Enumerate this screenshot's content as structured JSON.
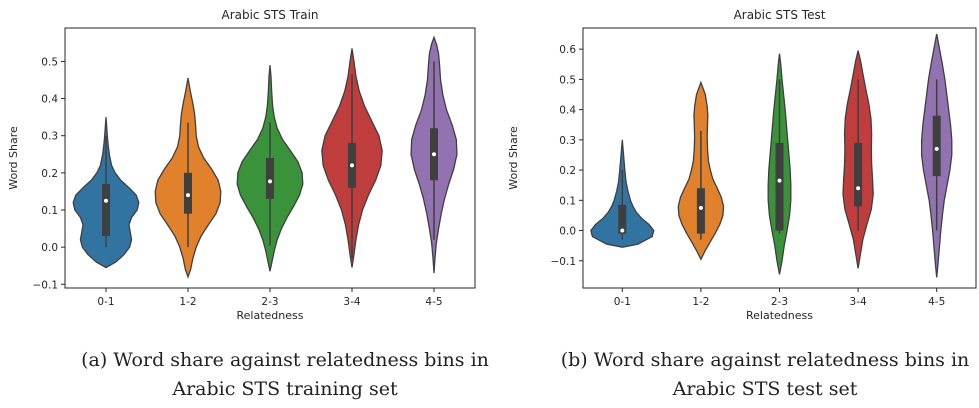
{
  "chart_data": [
    {
      "type": "violin",
      "title": "Arabic STS Train",
      "xlabel": "Relatedness",
      "ylabel": "Word Share",
      "categories": [
        "0-1",
        "1-2",
        "2-3",
        "3-4",
        "4-5"
      ],
      "ylim": [
        -0.11,
        0.59
      ],
      "yticks": [
        -0.1,
        0.0,
        0.1,
        0.2,
        0.3,
        0.4,
        0.5
      ],
      "ytick_labels": [
        "−0.1",
        "0.0",
        "0.1",
        "0.2",
        "0.3",
        "0.4",
        "0.5"
      ],
      "colors": [
        "#3274a1",
        "#e1812c",
        "#3a923a",
        "#c03d3e",
        "#9372b2"
      ],
      "grid": false,
      "violins": [
        {
          "category": "0-1",
          "median": 0.125,
          "q1": 0.03,
          "q3": 0.17,
          "whisker_low": 0.0,
          "whisker_high": 0.3,
          "profile": [
            [
              -0.055,
              0.0
            ],
            [
              -0.04,
              0.3
            ],
            [
              -0.02,
              0.55
            ],
            [
              0.0,
              0.72
            ],
            [
              0.02,
              0.78
            ],
            [
              0.04,
              0.74
            ],
            [
              0.06,
              0.7
            ],
            [
              0.08,
              0.78
            ],
            [
              0.1,
              0.95
            ],
            [
              0.12,
              1.0
            ],
            [
              0.14,
              0.92
            ],
            [
              0.16,
              0.7
            ],
            [
              0.18,
              0.45
            ],
            [
              0.2,
              0.28
            ],
            [
              0.22,
              0.17
            ],
            [
              0.25,
              0.1
            ],
            [
              0.28,
              0.06
            ],
            [
              0.3,
              0.04
            ],
            [
              0.35,
              0.0
            ]
          ]
        },
        {
          "category": "1-2",
          "median": 0.14,
          "q1": 0.09,
          "q3": 0.2,
          "whisker_low": 0.0,
          "whisker_high": 0.335,
          "profile": [
            [
              -0.08,
              0.0
            ],
            [
              -0.06,
              0.08
            ],
            [
              -0.03,
              0.15
            ],
            [
              0.0,
              0.25
            ],
            [
              0.03,
              0.4
            ],
            [
              0.06,
              0.62
            ],
            [
              0.09,
              0.85
            ],
            [
              0.12,
              0.98
            ],
            [
              0.15,
              1.0
            ],
            [
              0.18,
              0.92
            ],
            [
              0.21,
              0.72
            ],
            [
              0.24,
              0.48
            ],
            [
              0.27,
              0.32
            ],
            [
              0.3,
              0.25
            ],
            [
              0.33,
              0.23
            ],
            [
              0.36,
              0.2
            ],
            [
              0.39,
              0.14
            ],
            [
              0.42,
              0.07
            ],
            [
              0.455,
              0.0
            ]
          ]
        },
        {
          "category": "2-3",
          "median": 0.177,
          "q1": 0.13,
          "q3": 0.24,
          "whisker_low": 0.005,
          "whisker_high": 0.335,
          "profile": [
            [
              -0.065,
              0.0
            ],
            [
              -0.04,
              0.06
            ],
            [
              -0.01,
              0.13
            ],
            [
              0.02,
              0.22
            ],
            [
              0.05,
              0.35
            ],
            [
              0.08,
              0.52
            ],
            [
              0.11,
              0.72
            ],
            [
              0.14,
              0.9
            ],
            [
              0.17,
              1.0
            ],
            [
              0.2,
              0.98
            ],
            [
              0.23,
              0.85
            ],
            [
              0.26,
              0.62
            ],
            [
              0.29,
              0.38
            ],
            [
              0.32,
              0.22
            ],
            [
              0.35,
              0.13
            ],
            [
              0.38,
              0.08
            ],
            [
              0.42,
              0.05
            ],
            [
              0.46,
              0.03
            ],
            [
              0.49,
              0.0
            ]
          ]
        },
        {
          "category": "3-4",
          "median": 0.22,
          "q1": 0.16,
          "q3": 0.28,
          "whisker_low": -0.03,
          "whisker_high": 0.465,
          "profile": [
            [
              -0.055,
              0.0
            ],
            [
              -0.02,
              0.06
            ],
            [
              0.02,
              0.12
            ],
            [
              0.06,
              0.2
            ],
            [
              0.1,
              0.32
            ],
            [
              0.14,
              0.5
            ],
            [
              0.18,
              0.72
            ],
            [
              0.22,
              0.88
            ],
            [
              0.26,
              0.92
            ],
            [
              0.3,
              0.82
            ],
            [
              0.34,
              0.6
            ],
            [
              0.38,
              0.38
            ],
            [
              0.42,
              0.22
            ],
            [
              0.46,
              0.12
            ],
            [
              0.5,
              0.06
            ],
            [
              0.535,
              0.0
            ]
          ]
        },
        {
          "category": "4-5",
          "median": 0.25,
          "q1": 0.18,
          "q3": 0.32,
          "whisker_low": 0.02,
          "whisker_high": 0.5,
          "profile": [
            [
              -0.07,
              0.0
            ],
            [
              -0.03,
              0.03
            ],
            [
              0.01,
              0.07
            ],
            [
              0.05,
              0.14
            ],
            [
              0.09,
              0.22
            ],
            [
              0.13,
              0.32
            ],
            [
              0.17,
              0.45
            ],
            [
              0.21,
              0.6
            ],
            [
              0.25,
              0.7
            ],
            [
              0.29,
              0.68
            ],
            [
              0.33,
              0.55
            ],
            [
              0.37,
              0.38
            ],
            [
              0.41,
              0.27
            ],
            [
              0.45,
              0.2
            ],
            [
              0.49,
              0.17
            ],
            [
              0.52,
              0.14
            ],
            [
              0.545,
              0.08
            ],
            [
              0.565,
              0.0
            ]
          ]
        }
      ]
    },
    {
      "type": "violin",
      "title": "Arabic STS Test",
      "xlabel": "Relatedness",
      "ylabel": "Word Share",
      "categories": [
        "0-1",
        "1-2",
        "2-3",
        "3-4",
        "4-5"
      ],
      "ylim": [
        -0.19,
        0.67
      ],
      "yticks": [
        -0.1,
        0.0,
        0.1,
        0.2,
        0.3,
        0.4,
        0.5,
        0.6
      ],
      "ytick_labels": [
        "−0.1",
        "0.0",
        "0.1",
        "0.2",
        "0.3",
        "0.4",
        "0.5",
        "0.6"
      ],
      "colors": [
        "#3274a1",
        "#e1812c",
        "#3a923a",
        "#c03d3e",
        "#9372b2"
      ],
      "grid": false,
      "violins": [
        {
          "category": "0-1",
          "median": 0.0,
          "q1": -0.01,
          "q3": 0.085,
          "whisker_low": -0.03,
          "whisker_high": 0.2,
          "profile": [
            [
              -0.055,
              0.0
            ],
            [
              -0.045,
              0.5
            ],
            [
              -0.02,
              0.95
            ],
            [
              0.0,
              1.0
            ],
            [
              0.02,
              0.85
            ],
            [
              0.04,
              0.62
            ],
            [
              0.06,
              0.45
            ],
            [
              0.08,
              0.34
            ],
            [
              0.1,
              0.26
            ],
            [
              0.13,
              0.18
            ],
            [
              0.16,
              0.12
            ],
            [
              0.2,
              0.08
            ],
            [
              0.25,
              0.04
            ],
            [
              0.3,
              0.0
            ]
          ]
        },
        {
          "category": "1-2",
          "median": 0.075,
          "q1": -0.01,
          "q3": 0.14,
          "whisker_low": -0.03,
          "whisker_high": 0.33,
          "profile": [
            [
              -0.095,
              0.0
            ],
            [
              -0.07,
              0.12
            ],
            [
              -0.04,
              0.28
            ],
            [
              -0.01,
              0.45
            ],
            [
              0.02,
              0.6
            ],
            [
              0.05,
              0.7
            ],
            [
              0.08,
              0.72
            ],
            [
              0.11,
              0.65
            ],
            [
              0.14,
              0.52
            ],
            [
              0.17,
              0.38
            ],
            [
              0.2,
              0.3
            ],
            [
              0.23,
              0.24
            ],
            [
              0.27,
              0.21
            ],
            [
              0.31,
              0.2
            ],
            [
              0.35,
              0.21
            ],
            [
              0.38,
              0.22
            ],
            [
              0.41,
              0.2
            ],
            [
              0.45,
              0.14
            ],
            [
              0.49,
              0.0
            ]
          ]
        },
        {
          "category": "2-3",
          "median": 0.165,
          "q1": 0.0,
          "q3": 0.29,
          "whisker_low": -0.01,
          "whisker_high": 0.5,
          "profile": [
            [
              -0.145,
              0.0
            ],
            [
              -0.1,
              0.08
            ],
            [
              -0.05,
              0.15
            ],
            [
              0.0,
              0.24
            ],
            [
              0.05,
              0.32
            ],
            [
              0.1,
              0.36
            ],
            [
              0.15,
              0.36
            ],
            [
              0.2,
              0.34
            ],
            [
              0.25,
              0.3
            ],
            [
              0.3,
              0.26
            ],
            [
              0.35,
              0.22
            ],
            [
              0.4,
              0.18
            ],
            [
              0.45,
              0.13
            ],
            [
              0.5,
              0.08
            ],
            [
              0.55,
              0.04
            ],
            [
              0.585,
              0.0
            ]
          ]
        },
        {
          "category": "3-4",
          "median": 0.14,
          "q1": 0.08,
          "q3": 0.29,
          "whisker_low": 0.0,
          "whisker_high": 0.5,
          "profile": [
            [
              -0.125,
              0.0
            ],
            [
              -0.08,
              0.07
            ],
            [
              -0.03,
              0.15
            ],
            [
              0.02,
              0.28
            ],
            [
              0.07,
              0.42
            ],
            [
              0.12,
              0.48
            ],
            [
              0.17,
              0.46
            ],
            [
              0.22,
              0.43
            ],
            [
              0.27,
              0.42
            ],
            [
              0.32,
              0.43
            ],
            [
              0.37,
              0.41
            ],
            [
              0.42,
              0.34
            ],
            [
              0.47,
              0.24
            ],
            [
              0.52,
              0.15
            ],
            [
              0.56,
              0.08
            ],
            [
              0.595,
              0.0
            ]
          ]
        },
        {
          "category": "4-5",
          "median": 0.27,
          "q1": 0.18,
          "q3": 0.38,
          "whisker_low": 0.0,
          "whisker_high": 0.5,
          "profile": [
            [
              -0.155,
              0.0
            ],
            [
              -0.1,
              0.05
            ],
            [
              -0.05,
              0.09
            ],
            [
              0.0,
              0.13
            ],
            [
              0.05,
              0.18
            ],
            [
              0.1,
              0.24
            ],
            [
              0.15,
              0.33
            ],
            [
              0.2,
              0.42
            ],
            [
              0.25,
              0.48
            ],
            [
              0.3,
              0.48
            ],
            [
              0.35,
              0.44
            ],
            [
              0.4,
              0.38
            ],
            [
              0.45,
              0.32
            ],
            [
              0.5,
              0.26
            ],
            [
              0.55,
              0.18
            ],
            [
              0.6,
              0.09
            ],
            [
              0.65,
              0.0
            ]
          ]
        }
      ]
    }
  ],
  "captions": {
    "a": "(a) Word share against relatedness bins in\nArabic STS training set",
    "b": "(b) Word share against relatedness bins in\nArabic STS test set"
  }
}
